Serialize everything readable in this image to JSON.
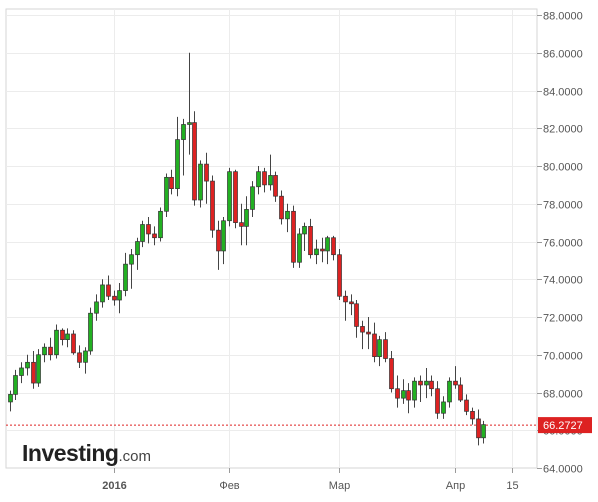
{
  "logo": {
    "main": "Investing",
    "tld": ".com"
  },
  "chart_data": {
    "type": "candlestick",
    "y_axis_position": "right",
    "ylim": [
      64.0,
      88.0
    ],
    "y_ticks": [
      "64.0000",
      "66.0000",
      "68.0000",
      "70.0000",
      "72.0000",
      "74.0000",
      "76.0000",
      "78.0000",
      "80.0000",
      "82.0000",
      "84.0000",
      "86.0000",
      "88.0000"
    ],
    "x_ticks": [
      {
        "label": "2016",
        "index": 18,
        "bold": true
      },
      {
        "label": "Фев",
        "index": 38,
        "bold": false
      },
      {
        "label": "Мар",
        "index": 57,
        "bold": false
      },
      {
        "label": "Апр",
        "index": 77,
        "bold": false
      },
      {
        "label": "15",
        "index": 87,
        "bold": false
      }
    ],
    "current_price": 66.2727,
    "current_price_label": "66.2727",
    "grid": true,
    "colors": {
      "up": "#22b022",
      "down": "#dd2222",
      "marker": "#dd2222"
    },
    "candles": [
      [
        67.5,
        68.1,
        67.0,
        67.9
      ],
      [
        67.9,
        69.2,
        67.6,
        68.9
      ],
      [
        68.9,
        69.6,
        68.5,
        69.3
      ],
      [
        69.3,
        70.0,
        68.9,
        69.6
      ],
      [
        69.6,
        70.2,
        68.2,
        68.5
      ],
      [
        68.5,
        70.3,
        68.3,
        70.0
      ],
      [
        70.0,
        70.6,
        69.6,
        70.4
      ],
      [
        70.4,
        70.9,
        69.7,
        70.0
      ],
      [
        70.0,
        71.6,
        69.8,
        71.3
      ],
      [
        71.3,
        71.4,
        70.5,
        70.8
      ],
      [
        70.8,
        71.4,
        70.4,
        71.1
      ],
      [
        71.1,
        71.3,
        70.0,
        70.1
      ],
      [
        70.1,
        70.5,
        69.3,
        69.6
      ],
      [
        69.6,
        70.4,
        69.0,
        70.2
      ],
      [
        70.2,
        72.5,
        70.0,
        72.2
      ],
      [
        72.2,
        73.2,
        71.8,
        72.8
      ],
      [
        72.8,
        74.0,
        72.5,
        73.7
      ],
      [
        73.7,
        74.2,
        72.9,
        73.1
      ],
      [
        73.1,
        73.4,
        72.6,
        72.9
      ],
      [
        72.9,
        73.8,
        72.2,
        73.4
      ],
      [
        73.4,
        75.4,
        73.1,
        74.8
      ],
      [
        74.8,
        75.6,
        73.5,
        75.3
      ],
      [
        75.3,
        76.2,
        74.5,
        76.0
      ],
      [
        76.0,
        77.1,
        75.7,
        76.9
      ],
      [
        76.9,
        77.3,
        75.9,
        76.4
      ],
      [
        76.4,
        76.8,
        75.8,
        76.2
      ],
      [
        76.2,
        77.8,
        76.0,
        77.6
      ],
      [
        77.6,
        79.6,
        77.3,
        79.4
      ],
      [
        79.4,
        79.8,
        78.5,
        78.8
      ],
      [
        78.8,
        82.6,
        78.4,
        81.4
      ],
      [
        81.4,
        82.5,
        79.5,
        82.2
      ],
      [
        82.2,
        86.0,
        80.6,
        82.3
      ],
      [
        82.3,
        82.9,
        77.9,
        78.2
      ],
      [
        78.2,
        80.3,
        77.8,
        80.1
      ],
      [
        80.1,
        80.7,
        78.0,
        79.2
      ],
      [
        79.2,
        79.5,
        76.2,
        76.6
      ],
      [
        76.6,
        77.1,
        74.5,
        75.5
      ],
      [
        75.5,
        77.3,
        74.8,
        77.1
      ],
      [
        77.1,
        79.9,
        76.8,
        79.7
      ],
      [
        79.7,
        79.8,
        76.7,
        77.0
      ],
      [
        77.0,
        78.0,
        75.8,
        76.8
      ],
      [
        76.8,
        78.4,
        75.8,
        77.7
      ],
      [
        77.7,
        79.2,
        77.3,
        78.9
      ],
      [
        78.9,
        80.0,
        78.5,
        79.7
      ],
      [
        79.7,
        79.9,
        78.6,
        79.0
      ],
      [
        79.0,
        80.6,
        78.7,
        79.5
      ],
      [
        79.5,
        79.7,
        78.1,
        78.4
      ],
      [
        78.4,
        78.7,
        76.9,
        77.2
      ],
      [
        77.2,
        78.0,
        76.5,
        77.6
      ],
      [
        77.6,
        77.9,
        74.6,
        74.9
      ],
      [
        74.9,
        76.7,
        74.6,
        76.4
      ],
      [
        76.4,
        77.0,
        75.5,
        76.8
      ],
      [
        76.8,
        77.2,
        75.1,
        75.3
      ],
      [
        75.3,
        76.1,
        74.8,
        75.6
      ],
      [
        75.6,
        76.2,
        74.9,
        75.5
      ],
      [
        75.5,
        76.3,
        74.8,
        76.2
      ],
      [
        76.2,
        76.3,
        75.0,
        75.3
      ],
      [
        75.3,
        75.6,
        72.9,
        73.1
      ],
      [
        73.1,
        73.4,
        71.8,
        72.8
      ],
      [
        72.8,
        73.2,
        72.1,
        72.7
      ],
      [
        72.7,
        72.9,
        70.9,
        71.5
      ],
      [
        71.5,
        71.8,
        70.3,
        71.2
      ],
      [
        71.2,
        72.0,
        70.3,
        71.1
      ],
      [
        71.1,
        71.7,
        69.6,
        69.9
      ],
      [
        69.9,
        71.0,
        69.4,
        70.8
      ],
      [
        70.8,
        71.2,
        69.6,
        69.8
      ],
      [
        69.8,
        70.2,
        68.0,
        68.2
      ],
      [
        68.2,
        68.9,
        67.2,
        67.7
      ],
      [
        67.7,
        68.7,
        67.4,
        68.1
      ],
      [
        68.1,
        68.5,
        66.9,
        67.6
      ],
      [
        67.6,
        68.8,
        67.2,
        68.6
      ],
      [
        68.6,
        68.9,
        67.5,
        68.4
      ],
      [
        68.4,
        69.3,
        67.7,
        68.6
      ],
      [
        68.6,
        68.9,
        67.8,
        68.2
      ],
      [
        68.2,
        68.6,
        66.6,
        66.9
      ],
      [
        66.9,
        67.8,
        66.6,
        67.5
      ],
      [
        67.5,
        68.8,
        67.2,
        68.6
      ],
      [
        68.6,
        69.4,
        68.2,
        68.4
      ],
      [
        68.4,
        68.8,
        67.5,
        67.6
      ],
      [
        67.6,
        67.9,
        66.8,
        67.0
      ],
      [
        67.0,
        67.2,
        66.3,
        66.6
      ],
      [
        66.6,
        67.1,
        65.2,
        65.6
      ],
      [
        65.6,
        66.5,
        65.3,
        66.3
      ]
    ]
  }
}
